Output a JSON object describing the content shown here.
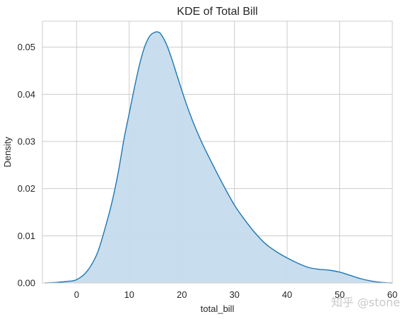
{
  "chart_data": {
    "type": "area",
    "title": "KDE of Total Bill",
    "xlabel": "total_bill",
    "ylabel": "Density",
    "xlim": [
      -6.5,
      60.0
    ],
    "ylim": [
      0.0,
      0.0555
    ],
    "x_ticks": [
      0,
      10,
      20,
      30,
      40,
      50,
      60
    ],
    "y_ticks": [
      0.0,
      0.01,
      0.02,
      0.03,
      0.04,
      0.05
    ],
    "x_tick_labels": [
      "0",
      "10",
      "20",
      "30",
      "40",
      "50",
      "60"
    ],
    "y_tick_labels": [
      "0.00",
      "0.01",
      "0.02",
      "0.03",
      "0.04",
      "0.05"
    ],
    "grid": true,
    "colors": {
      "line": "#1f77b4",
      "fill": "#c5dbec",
      "grid": "#cccccc",
      "axes_edge": "#cccccc",
      "text": "#262626"
    },
    "series": [
      {
        "x": [
          -6,
          -4,
          -2,
          0,
          2,
          4,
          6,
          7,
          8,
          9,
          10,
          11,
          12,
          13,
          14,
          15,
          15.5,
          16,
          17,
          18,
          19,
          20,
          21,
          22,
          23,
          24,
          26,
          28,
          30,
          32,
          34,
          36,
          38,
          40,
          42,
          44,
          46,
          48,
          50,
          52,
          54,
          56,
          58,
          60
        ],
        "y": [
          0.0,
          0.0001,
          0.0003,
          0.0007,
          0.0025,
          0.0065,
          0.014,
          0.0185,
          0.024,
          0.0305,
          0.036,
          0.0415,
          0.0465,
          0.0503,
          0.0525,
          0.0532,
          0.0532,
          0.0528,
          0.0508,
          0.0478,
          0.0443,
          0.0408,
          0.0375,
          0.0345,
          0.0318,
          0.0293,
          0.0248,
          0.0205,
          0.0165,
          0.0133,
          0.0105,
          0.0082,
          0.0066,
          0.0053,
          0.0042,
          0.0033,
          0.0029,
          0.0027,
          0.0023,
          0.0016,
          0.0009,
          0.0004,
          0.0001,
          0.0
        ]
      }
    ]
  },
  "watermark": "知乎 @stone"
}
